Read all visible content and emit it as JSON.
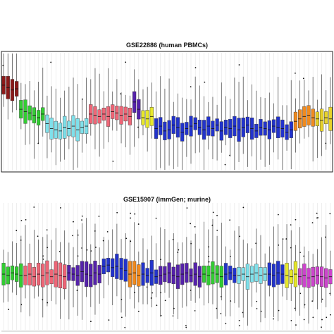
{
  "chart_data": [
    {
      "type": "box",
      "title": "GSE22886 (human PBMCs)",
      "xlabel": "",
      "ylabel": "",
      "grid": true,
      "groups": [
        {
          "color": "#8b1a1a",
          "n": 4,
          "med": [
            0.72,
            0.7,
            0.68,
            0.69
          ]
        },
        {
          "color": "#33cc33",
          "n": 6,
          "med": [
            0.52,
            0.5,
            0.49,
            0.47,
            0.45,
            0.48
          ]
        },
        {
          "color": "#7fe0ea",
          "n": 10,
          "med": [
            0.4,
            0.36,
            0.35,
            0.34,
            0.37,
            0.36,
            0.38,
            0.35,
            0.37,
            0.38
          ]
        },
        {
          "color": "#ee6677",
          "n": 10,
          "med": [
            0.48,
            0.47,
            0.46,
            0.48,
            0.46,
            0.5,
            0.49,
            0.47,
            0.48,
            0.46
          ]
        },
        {
          "color": "#5522aa",
          "n": 2,
          "med": [
            0.58,
            0.52
          ]
        },
        {
          "color": "#e7e82a",
          "n": 3,
          "med": [
            0.45,
            0.44,
            0.46
          ]
        },
        {
          "color": "#2233cc",
          "n": 32,
          "med": [
            0.36,
            0.38,
            0.34,
            0.35,
            0.39,
            0.37,
            0.33,
            0.36,
            0.38,
            0.4,
            0.37,
            0.35,
            0.38,
            0.36,
            0.39,
            0.34,
            0.37,
            0.36,
            0.38,
            0.35,
            0.37,
            0.39,
            0.36,
            0.34,
            0.37,
            0.36,
            0.35,
            0.38,
            0.37,
            0.36,
            0.33,
            0.35
          ]
        },
        {
          "color": "#f08a1e",
          "n": 5,
          "med": [
            0.42,
            0.44,
            0.46,
            0.47,
            0.45
          ]
        },
        {
          "color": "#e7d22a",
          "n": 4,
          "med": [
            0.44,
            0.43,
            0.45,
            0.44
          ]
        }
      ]
    },
    {
      "type": "box",
      "title": "GSE15907 (ImmGen; murine)",
      "xlabel": "",
      "ylabel": "",
      "grid": true,
      "groups": [
        {
          "color": "#33cc33",
          "n": 5,
          "med": [
            0.44,
            0.43,
            0.45,
            0.44,
            0.43
          ]
        },
        {
          "color": "#ee6677",
          "n": 10,
          "med": [
            0.43,
            0.44,
            0.42,
            0.44,
            0.43,
            0.45,
            0.42,
            0.44,
            0.43,
            0.42
          ]
        },
        {
          "color": "#5522aa",
          "n": 8,
          "med": [
            0.45,
            0.44,
            0.43,
            0.46,
            0.44,
            0.43,
            0.45,
            0.44
          ]
        },
        {
          "color": "#2233cc",
          "n": 6,
          "med": [
            0.5,
            0.51,
            0.49,
            0.5,
            0.48,
            0.47
          ]
        },
        {
          "color": "#f08a1e",
          "n": 3,
          "med": [
            0.44,
            0.45,
            0.43
          ]
        },
        {
          "color": "#2233cc",
          "n": 4,
          "med": [
            0.44,
            0.43,
            0.45,
            0.42
          ]
        },
        {
          "color": "#5522aa",
          "n": 10,
          "med": [
            0.43,
            0.44,
            0.45,
            0.43,
            0.42,
            0.44,
            0.45,
            0.43,
            0.44,
            0.42
          ]
        },
        {
          "color": "#33cc33",
          "n": 5,
          "med": [
            0.44,
            0.43,
            0.45,
            0.44,
            0.42
          ]
        },
        {
          "color": "#2233cc",
          "n": 3,
          "med": [
            0.44,
            0.45,
            0.43
          ]
        },
        {
          "color": "#7fe0ea",
          "n": 7,
          "med": [
            0.43,
            0.44,
            0.42,
            0.44,
            0.45,
            0.43,
            0.44
          ]
        },
        {
          "color": "#2233cc",
          "n": 4,
          "med": [
            0.44,
            0.43,
            0.45,
            0.44
          ]
        },
        {
          "color": "#e7e82a",
          "n": 3,
          "med": [
            0.43,
            0.42,
            0.44
          ]
        },
        {
          "color": "#cc44cc",
          "n": 8,
          "med": [
            0.42,
            0.43,
            0.41,
            0.42,
            0.43,
            0.42,
            0.41,
            0.42
          ]
        }
      ]
    }
  ]
}
